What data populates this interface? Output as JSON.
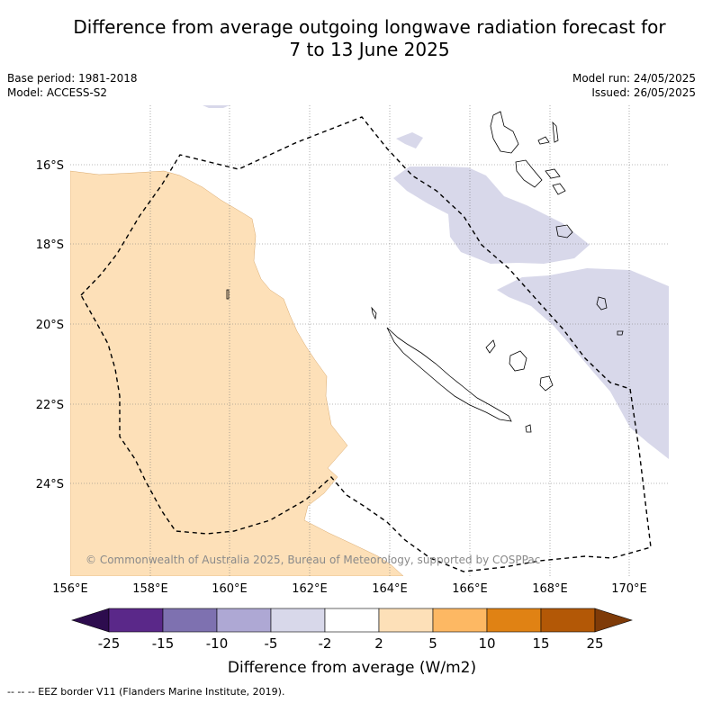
{
  "title": {
    "line1": "Difference from average outgoing longwave radiation forecast for",
    "line2": "7 to 13 June 2025"
  },
  "meta_left": {
    "base_period": "Base period: 1981-2018",
    "model": "Model: ACCESS-S2"
  },
  "meta_right": {
    "model_run": "Model run: 24/05/2025",
    "issued": "Issued: 26/05/2025"
  },
  "axes": {
    "lon_labels": [
      "156°E",
      "158°E",
      "160°E",
      "162°E",
      "164°E",
      "166°E",
      "168°E",
      "170°E"
    ],
    "lat_labels": [
      "16°S",
      "18°S",
      "20°S",
      "22°S",
      "24°S"
    ]
  },
  "copyright": "© Commonwealth of Australia 2025, Bureau of Meteorology, supported by COSPPac",
  "colorbar": {
    "ticks": [
      "-25",
      "-15",
      "-10",
      "-5",
      "-2",
      "2",
      "5",
      "10",
      "15",
      "25"
    ],
    "colors": [
      "#2d0c4e",
      "#5a2889",
      "#7e71b0",
      "#aea8d4",
      "#d8d8ea",
      "#ffffff",
      "#fde0b8",
      "#fdb863",
      "#e08214",
      "#b35806",
      "#7f3b08"
    ],
    "label": "Difference from average (W/m2)"
  },
  "legend_note": "--  --  -- EEZ border V11 (Flanders Marine Institute, 2019)."
}
